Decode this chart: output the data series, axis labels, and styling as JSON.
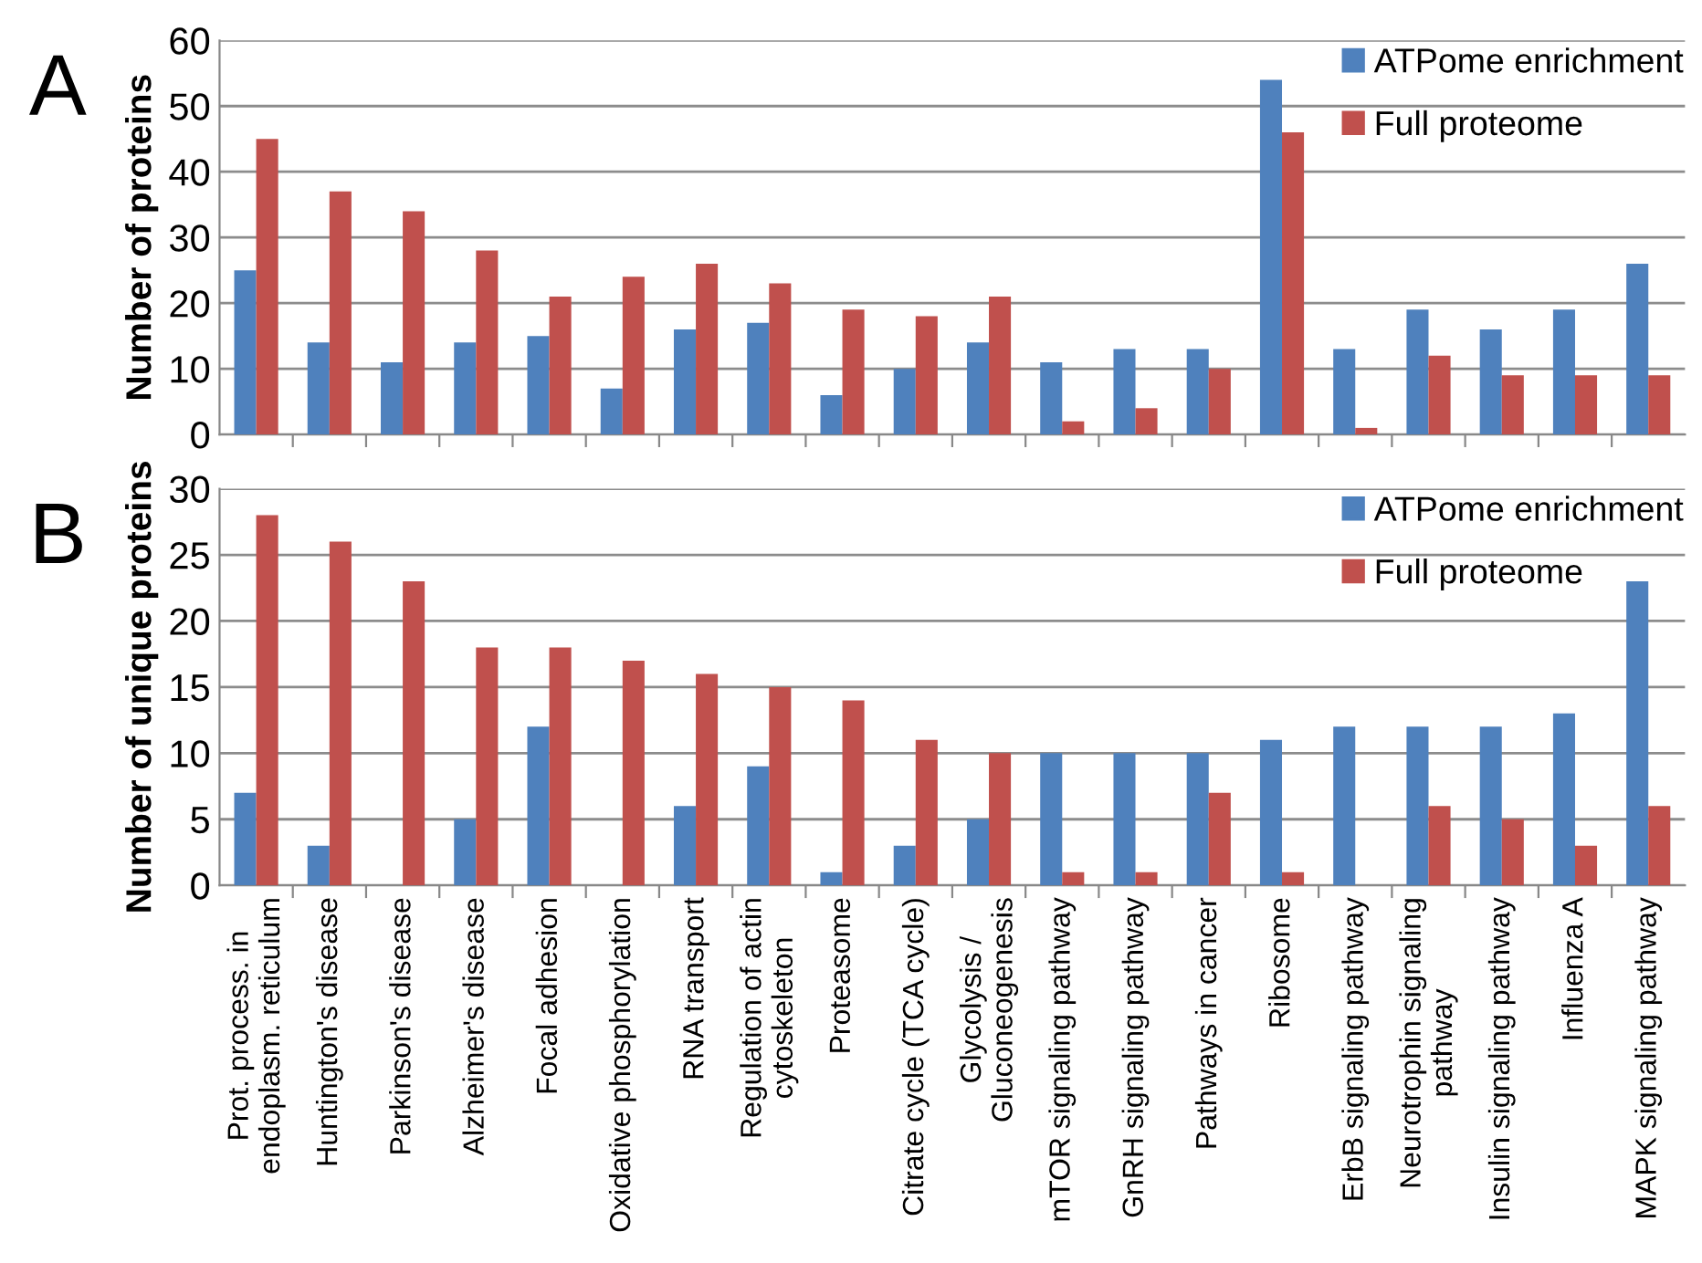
{
  "chart_data": [
    {
      "type": "bar",
      "ylabel": "Number of proteins",
      "annotations": [
        "A"
      ],
      "categories": [
        null,
        null,
        null,
        null,
        null,
        null,
        null,
        null,
        null,
        null,
        null,
        null,
        null,
        null,
        null,
        null,
        null,
        null,
        null,
        null
      ],
      "series": [
        {
          "name": "ATPome enrichment",
          "color": "#4f81bd",
          "values": [
            25,
            14,
            11,
            14,
            15,
            7,
            16,
            17,
            6,
            10,
            14,
            11,
            13,
            13,
            54,
            13,
            19,
            16,
            19,
            26
          ]
        },
        {
          "name": "Full proteome",
          "color": "#c0504d",
          "values": [
            45,
            37,
            34,
            28,
            21,
            24,
            26,
            23,
            19,
            18,
            21,
            2,
            4,
            10,
            46,
            1,
            12,
            9,
            9,
            9
          ]
        }
      ],
      "ylim": [
        0,
        60
      ],
      "yticks": [
        0,
        10,
        20,
        30,
        40,
        50,
        60
      ],
      "grid": "y",
      "legend": "top right",
      "tick_labels": "y"
    },
    {
      "type": "bar",
      "ylabel": "Number of unique proteins",
      "annotations": [
        "B"
      ],
      "categories": [
        "Prot. process. in\nendoplasm. reticulum",
        "Huntington's disease",
        "Parkinson's disease",
        "Alzheimer's disease",
        "Focal adhesion",
        "Oxidative phosphorylation",
        "RNA transport",
        "Regulation of actin\ncytoskeleton",
        "Proteasome",
        "Citrate cycle (TCA cycle)",
        "Glycolysis /\nGluconeogenesis",
        "mTOR signaling pathway",
        "GnRH signaling pathway",
        "Pathways in cancer",
        "Ribosome",
        "ErbB signaling pathway",
        "Neurotrophin signaling\npathway",
        "Insulin signaling pathway",
        "Influenza A",
        "MAPK signaling pathway"
      ],
      "series": [
        {
          "name": "ATPome enrichment",
          "color": "#4f81bd",
          "values": [
            7,
            3,
            0,
            5,
            12,
            0,
            6,
            9,
            1,
            3,
            5,
            10,
            10,
            10,
            11,
            12,
            12,
            12,
            13,
            23
          ]
        },
        {
          "name": "Full proteome",
          "color": "#c0504d",
          "values": [
            28,
            26,
            23,
            18,
            18,
            17,
            16,
            15,
            14,
            11,
            10,
            1,
            1,
            7,
            1,
            0,
            6,
            5,
            3,
            6
          ]
        }
      ],
      "ylim": [
        0,
        30
      ],
      "yticks": [
        0,
        5,
        10,
        15,
        20,
        25,
        30
      ],
      "grid": "y",
      "legend": "top right"
    }
  ]
}
